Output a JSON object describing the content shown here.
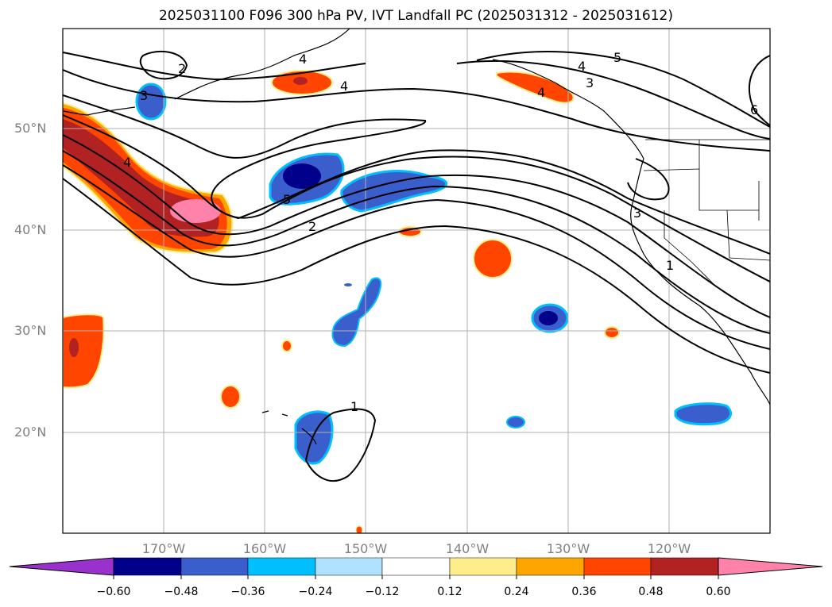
{
  "title": "2025031100 F096 300 hPa PV, IVT Landfall PC (2025031312 - 2025031612)",
  "lat_labels": [
    "50°N",
    "40°N",
    "30°N",
    "20°N"
  ],
  "lon_labels": [
    "170°W",
    "160°W",
    "150°W",
    "140°W",
    "130°W",
    "120°W"
  ],
  "contour_labels": [
    "2",
    "4",
    "3",
    "4",
    "4",
    "5",
    "4",
    "3",
    "6",
    "4",
    "3",
    "2",
    "1",
    "1",
    "5"
  ],
  "colorbar": {
    "ticks": [
      "−0.60",
      "−0.48",
      "−0.36",
      "−0.24",
      "−0.12",
      "0.12",
      "0.24",
      "0.36",
      "0.48",
      "0.60"
    ],
    "colors": [
      "#9932cc",
      "#00008b",
      "#3a5fcd",
      "#00bfff",
      "#b0e2ff",
      "#ffffff",
      "#ffec8b",
      "#ffa500",
      "#ff4500",
      "#b22222",
      "#ff82ab"
    ]
  },
  "colors": {
    "coast": "#000000",
    "grid": "#b0b0b0",
    "contour": "#000000"
  }
}
